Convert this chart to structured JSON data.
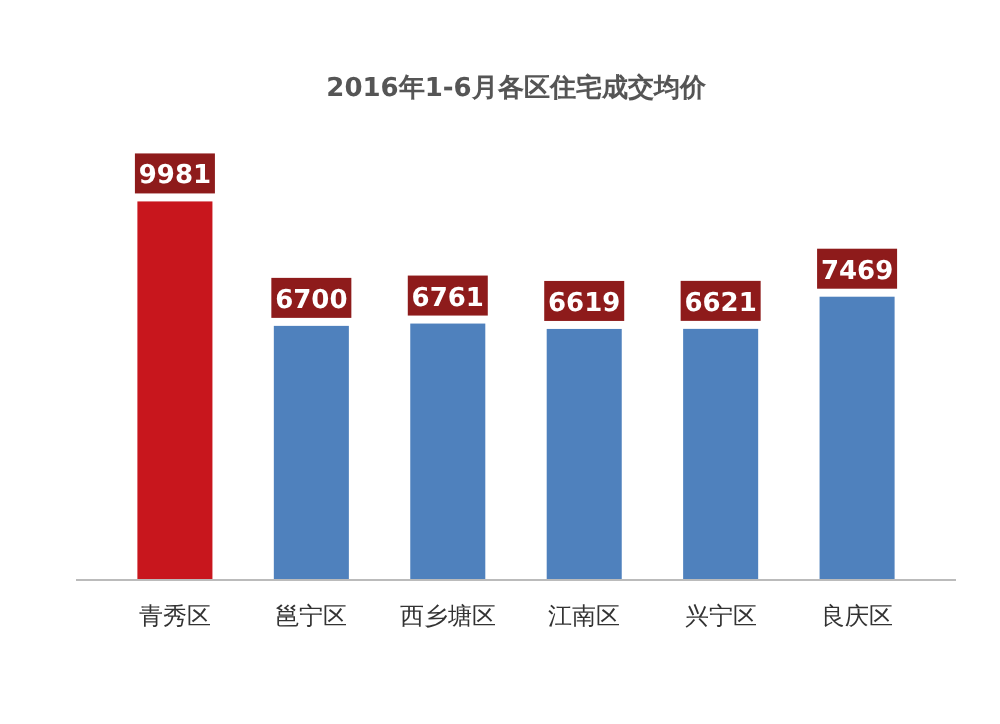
{
  "chart_data": {
    "type": "bar",
    "title": "2016年1-6月各区住宅成交均价",
    "categories": [
      "青秀区",
      "邕宁区",
      "西乡塘区",
      "江南区",
      "兴宁区",
      "良庆区"
    ],
    "values": [
      9981,
      6700,
      6761,
      6619,
      6621,
      7469
    ],
    "colors": [
      "#c8161d",
      "#4f81bd",
      "#4f81bd",
      "#4f81bd",
      "#4f81bd",
      "#4f81bd"
    ],
    "data_labels": true
  }
}
